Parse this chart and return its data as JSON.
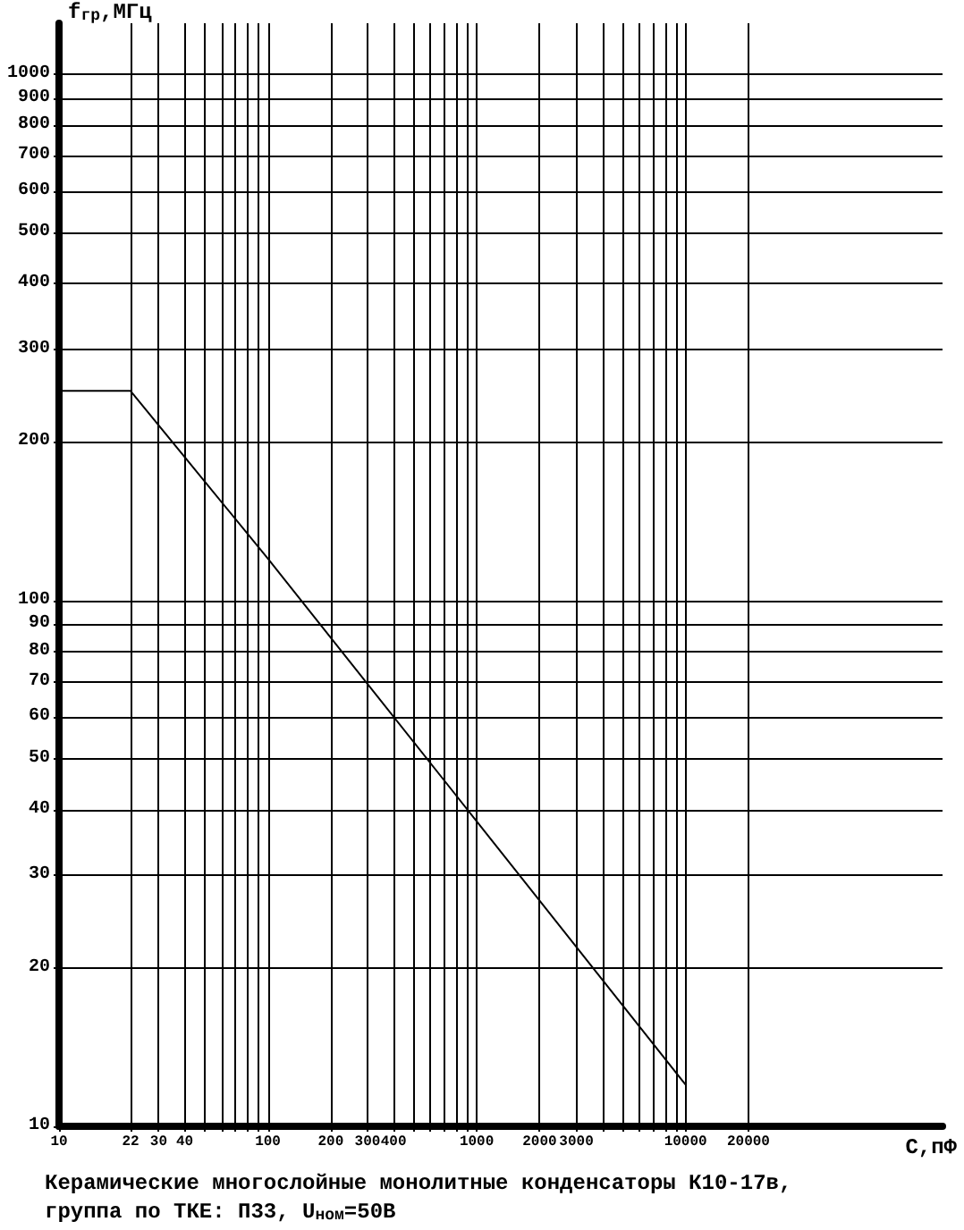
{
  "chart_data": {
    "type": "line",
    "log": "xy",
    "xlabel": "С,пФ",
    "ylabel": "f$_{гр}$,МГц",
    "x": [
      10,
      22,
      100,
      1000,
      10000
    ],
    "series": [
      {
        "color": "#000000",
        "values": [
          250,
          250,
          120,
          38,
          12
        ]
      }
    ],
    "xlim": [
      10,
      170000
    ],
    "ylim": [
      10,
      1250
    ],
    "xticks": [
      10,
      22,
      30,
      40,
      {
        "value": 50,
        "label": null
      },
      {
        "value": 60,
        "label": null
      },
      {
        "value": 70,
        "label": null
      },
      {
        "value": 80,
        "label": null
      },
      {
        "value": 90,
        "label": null
      },
      100,
      200,
      300,
      400,
      {
        "value": 500,
        "label": null
      },
      {
        "value": 600,
        "label": null
      },
      {
        "value": 700,
        "label": null
      },
      {
        "value": 800,
        "label": null
      },
      {
        "value": 900,
        "label": null
      },
      1000,
      2000,
      3000,
      {
        "value": 4000,
        "label": null
      },
      {
        "value": 5000,
        "label": null
      },
      {
        "value": 6000,
        "label": null
      },
      {
        "value": 7000,
        "label": null
      },
      {
        "value": 8000,
        "label": null
      },
      {
        "value": 9000,
        "label": null
      },
      10000,
      20000
    ],
    "yticks": [
      10,
      20,
      30,
      40,
      50,
      60,
      70,
      80,
      90,
      100,
      200,
      300,
      400,
      500,
      600,
      700,
      800,
      900,
      1000
    ],
    "grid": true,
    "marker": "none",
    "line_style": "solid",
    "annotations": [
      "Керамические многослойные монолитные конденсаторы К10-17в,",
      "группа по ТКЕ: П33, U$_{ном}$=50В"
    ]
  }
}
